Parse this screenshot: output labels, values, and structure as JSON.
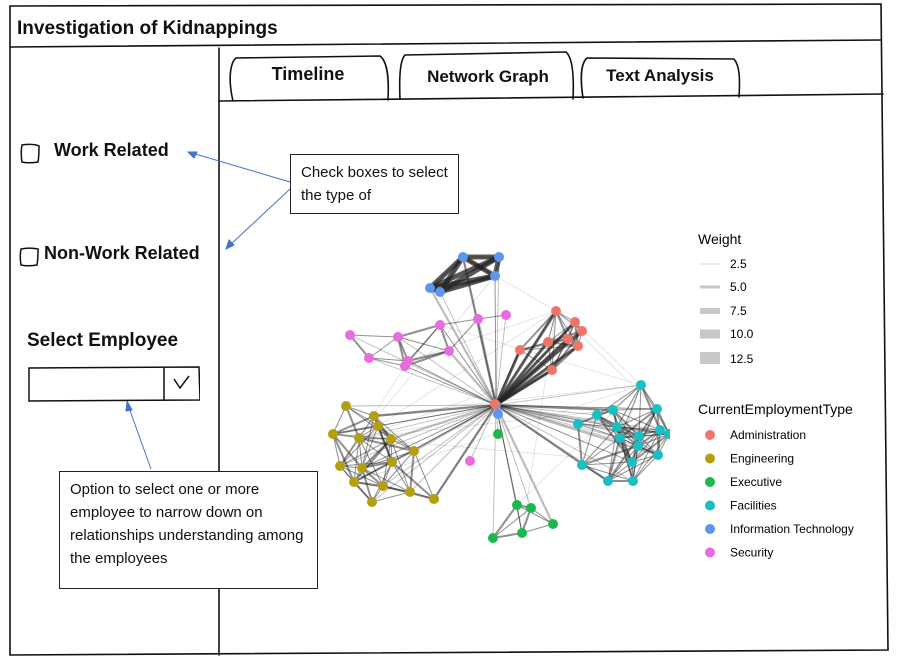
{
  "app": {
    "title": "Investigation of Kidnappings"
  },
  "tabs": [
    {
      "label": "Timeline"
    },
    {
      "label": "Network Graph",
      "active": true
    },
    {
      "label": "Text Analysis"
    }
  ],
  "sidebar": {
    "checkboxes": [
      {
        "label": "Work Related",
        "checked": false
      },
      {
        "label": "Non-Work Related",
        "checked": false
      }
    ],
    "select_employee": {
      "label": "Select Employee",
      "value": "",
      "chevron": "√"
    }
  },
  "annotations": {
    "checkbox_note": "Check boxes to select the type of",
    "employee_note": "Option to select one or more employee to narrow down on relationships understanding among the employees"
  },
  "legend": {
    "weight_title": "Weight",
    "weights": [
      "2.5",
      "5.0",
      "7.5",
      "10.0",
      "12.5"
    ],
    "type_title": "CurrentEmploymentType",
    "types": [
      {
        "label": "Administration",
        "color": "#f07468"
      },
      {
        "label": "Engineering",
        "color": "#b3a010"
      },
      {
        "label": "Executive",
        "color": "#1db84b"
      },
      {
        "label": "Facilities",
        "color": "#19bfc4"
      },
      {
        "label": "Information Technology",
        "color": "#5f95f2"
      },
      {
        "label": "Security",
        "color": "#ea6be0"
      }
    ]
  }
}
